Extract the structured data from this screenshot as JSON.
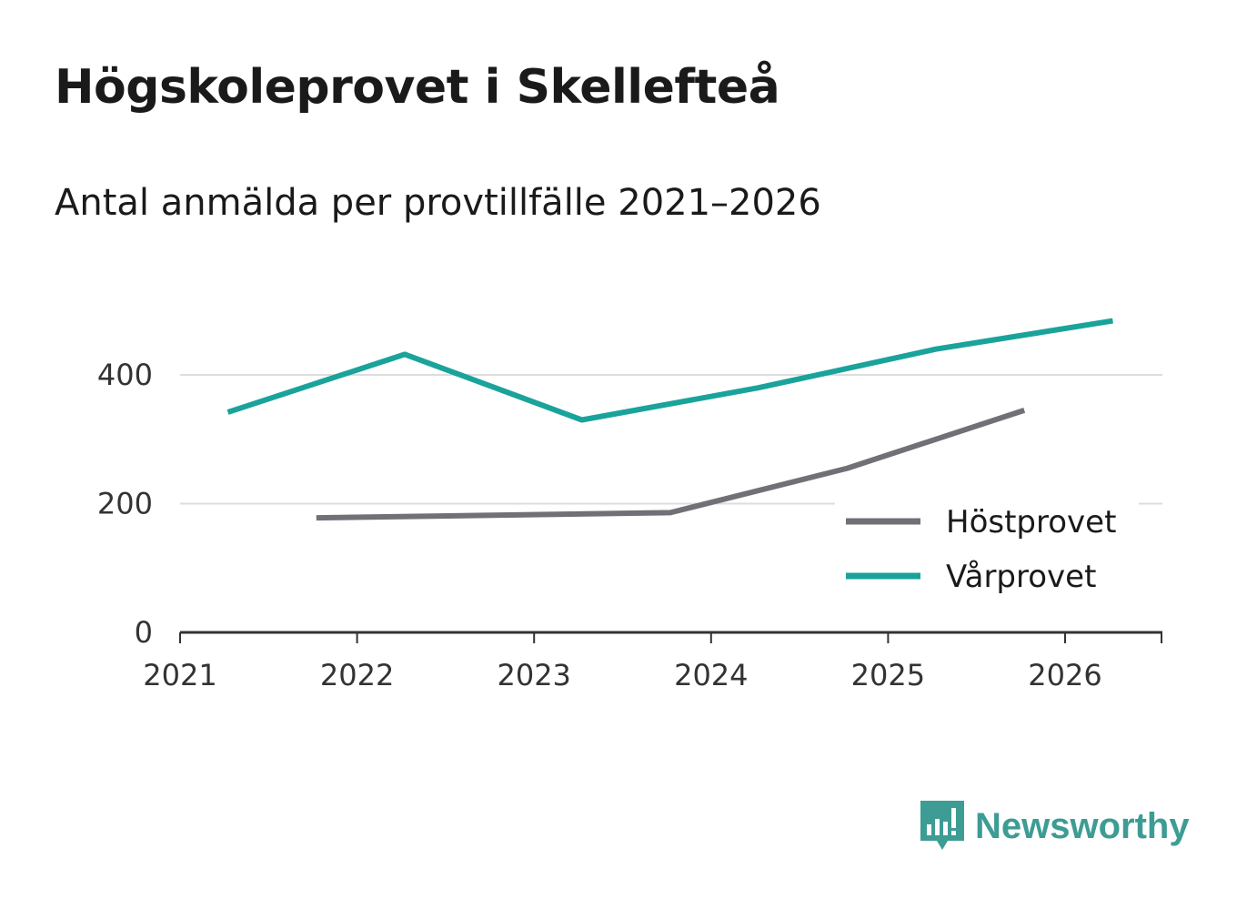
{
  "chart_data": {
    "type": "line",
    "title": "Högskoleprovet i Skellefteå",
    "subtitle": "Antal anmälda per provtillfälle 2021–2026",
    "xlabel": "",
    "ylabel": "",
    "xlim": [
      2021,
      2026.55
    ],
    "ylim": [
      0,
      500
    ],
    "x_ticks": [
      "2021",
      "2022",
      "2023",
      "2024",
      "2025",
      "2026"
    ],
    "y_ticks": [
      "0",
      "200",
      "400"
    ],
    "grid": true,
    "legend_position": "bottom-right",
    "series": [
      {
        "name": "Höstprovet",
        "color": "#707077",
        "x": [
          2021.77,
          2022.77,
          2023.77,
          2024.77,
          2025.77
        ],
        "y": [
          178,
          182,
          186,
          255,
          345
        ]
      },
      {
        "name": "Vårprovet",
        "color": "#1aa39a",
        "x": [
          2021.27,
          2022.27,
          2023.27,
          2024.27,
          2025.27,
          2026.27
        ],
        "y": [
          342,
          432,
          330,
          380,
          440,
          484
        ]
      }
    ]
  },
  "brand": {
    "name": "Newsworthy",
    "color": "#3d9c94",
    "icon": "bar-chart-speech-bubble-icon"
  }
}
